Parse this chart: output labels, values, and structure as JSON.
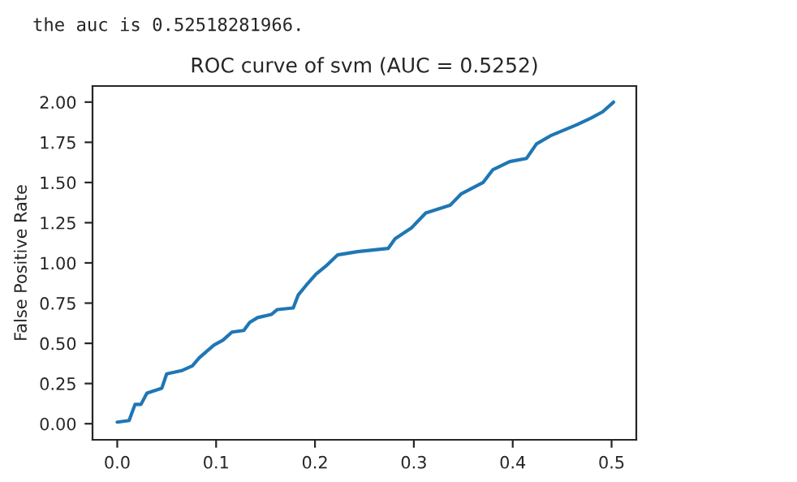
{
  "chart_data": {
    "type": "line",
    "title": "ROC curve of svm (AUC = 0.5252)",
    "ylabel": "False Positive Rate",
    "annotations": [
      "the auc is 0.52518281966."
    ],
    "series": [
      {
        "color": "#1f77b4",
        "x": [
          0.0,
          0.012,
          0.018,
          0.024,
          0.03,
          0.045,
          0.05,
          0.065,
          0.076,
          0.083,
          0.098,
          0.107,
          0.116,
          0.128,
          0.134,
          0.142,
          0.156,
          0.162,
          0.178,
          0.183,
          0.191,
          0.201,
          0.211,
          0.223,
          0.243,
          0.274,
          0.281,
          0.298,
          0.312,
          0.337,
          0.348,
          0.37,
          0.38,
          0.397,
          0.414,
          0.424,
          0.438,
          0.465,
          0.479,
          0.491,
          0.502
        ],
        "values": [
          0.01,
          0.02,
          0.12,
          0.12,
          0.19,
          0.22,
          0.31,
          0.33,
          0.36,
          0.41,
          0.49,
          0.52,
          0.57,
          0.58,
          0.63,
          0.66,
          0.68,
          0.71,
          0.72,
          0.8,
          0.86,
          0.93,
          0.98,
          1.05,
          1.07,
          1.09,
          1.15,
          1.22,
          1.31,
          1.36,
          1.43,
          1.5,
          1.58,
          1.63,
          1.65,
          1.74,
          1.79,
          1.86,
          1.9,
          1.94,
          2.0
        ]
      }
    ],
    "xlim": [
      -0.025,
      0.525
    ],
    "ylim": [
      -0.1,
      2.1
    ],
    "xticks": [
      {
        "value": 0,
        "label": "0.0"
      },
      0.1,
      0.2,
      0.3,
      0.4,
      0.5
    ],
    "yticks": [
      {
        "value": 0,
        "label": "0.00"
      },
      0.25,
      {
        "value": 0.5,
        "label": "0.50"
      },
      0.75,
      {
        "value": 1,
        "label": "1.00"
      },
      1.25,
      {
        "value": 1.5,
        "label": "1.50"
      },
      1.75,
      {
        "value": 2,
        "label": "2.00"
      }
    ],
    "grid": false,
    "legend": false
  }
}
